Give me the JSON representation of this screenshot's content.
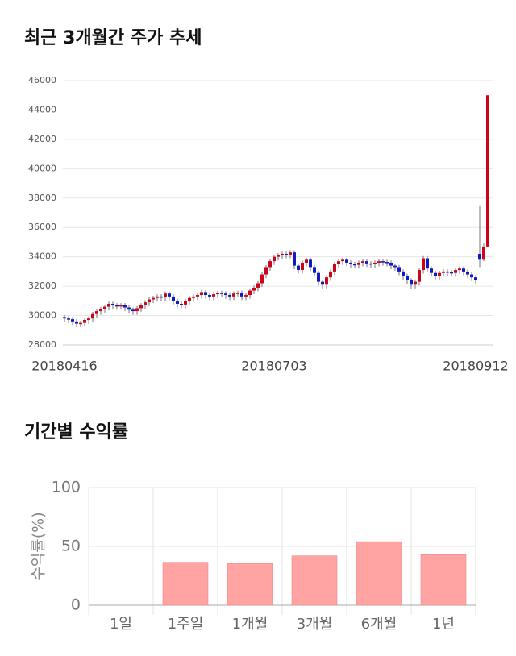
{
  "chart_data": [
    {
      "type": "candlestick",
      "title": "최근 3개월간 주가 추세",
      "categories": [
        "20180416",
        null,
        null,
        null,
        null,
        null,
        null,
        null,
        null,
        null,
        null,
        null,
        null,
        null,
        null,
        null,
        null,
        null,
        null,
        null,
        null,
        null,
        null,
        null,
        null,
        null,
        null,
        null,
        null,
        null,
        null,
        null,
        null,
        null,
        null,
        null,
        null,
        null,
        null,
        null,
        null,
        null,
        null,
        null,
        null,
        null,
        null,
        null,
        null,
        null,
        null,
        null,
        "20180703",
        null,
        null,
        null,
        null,
        null,
        null,
        null,
        null,
        null,
        null,
        null,
        null,
        null,
        null,
        null,
        null,
        null,
        null,
        null,
        null,
        null,
        null,
        null,
        null,
        null,
        null,
        null,
        null,
        null,
        null,
        null,
        null,
        null,
        null,
        null,
        null,
        null,
        null,
        null,
        null,
        null,
        null,
        null,
        null,
        null,
        null,
        null,
        null,
        null,
        "20180912",
        null,
        null,
        null
      ],
      "open": [
        29900,
        29800,
        29750,
        29600,
        29450,
        29500,
        29700,
        29800,
        30100,
        30300,
        30450,
        30600,
        30800,
        30700,
        30650,
        30700,
        30550,
        30400,
        30300,
        30500,
        30700,
        30900,
        31100,
        31200,
        31300,
        31250,
        31500,
        31300,
        31000,
        30800,
        30750,
        31000,
        31200,
        31300,
        31400,
        31600,
        31400,
        31300,
        31450,
        31550,
        31500,
        31400,
        31300,
        31500,
        31550,
        31300,
        31400,
        31700,
        31900,
        32200,
        32800,
        33300,
        33700,
        34000,
        34100,
        34200,
        34150,
        34300,
        33400,
        33100,
        33600,
        33800,
        33300,
        32900,
        32300,
        32100,
        32600,
        33000,
        33500,
        33700,
        33800,
        33600,
        33500,
        33450,
        33600,
        33700,
        33550,
        33500,
        33600,
        33700,
        33650,
        33600,
        33400,
        33300,
        33000,
        32700,
        32400,
        32100,
        32300,
        33100,
        33900,
        33200,
        32900,
        32700,
        32900,
        33000,
        32950,
        32900,
        33100,
        33200,
        33000,
        32800,
        32600,
        34200,
        33800,
        34700
      ],
      "high": [
        30050,
        29950,
        29900,
        29750,
        29650,
        29850,
        29950,
        30250,
        30450,
        30600,
        30750,
        30950,
        30950,
        30850,
        30850,
        30850,
        30700,
        30550,
        30650,
        30850,
        31050,
        31250,
        31350,
        31450,
        31450,
        31650,
        31650,
        31450,
        31150,
        30950,
        31150,
        31350,
        31450,
        31550,
        31750,
        31750,
        31550,
        31600,
        31700,
        31700,
        31650,
        31550,
        31650,
        31700,
        31700,
        31550,
        31850,
        32050,
        32350,
        32950,
        33450,
        33850,
        34150,
        34250,
        34350,
        34350,
        34450,
        34450,
        33550,
        33750,
        33950,
        33950,
        33450,
        33050,
        32450,
        32750,
        33150,
        33650,
        33850,
        33950,
        33950,
        33750,
        33650,
        33750,
        33850,
        33850,
        33700,
        33750,
        33850,
        33850,
        33800,
        33750,
        33550,
        33450,
        33150,
        32850,
        32550,
        32450,
        33250,
        34050,
        34050,
        33350,
        33050,
        33050,
        33150,
        33150,
        33100,
        33250,
        33350,
        33350,
        33150,
        32950,
        32750,
        37500,
        34900,
        45000
      ],
      "low": [
        29550,
        29500,
        29350,
        29200,
        29200,
        29250,
        29450,
        29550,
        29850,
        30050,
        30200,
        30350,
        30450,
        30400,
        30400,
        30300,
        30150,
        30050,
        30050,
        30250,
        30450,
        30650,
        30850,
        30950,
        31000,
        31000,
        31050,
        30750,
        30550,
        30500,
        30500,
        30750,
        30950,
        31050,
        31150,
        31150,
        31050,
        31050,
        31200,
        31250,
        31150,
        31050,
        31050,
        31250,
        31050,
        31050,
        31150,
        31450,
        31650,
        31950,
        32550,
        33050,
        33450,
        33750,
        33850,
        33900,
        33900,
        33150,
        32850,
        32850,
        33350,
        33050,
        32650,
        32050,
        31850,
        31850,
        32350,
        32750,
        33250,
        33450,
        33350,
        33250,
        33200,
        33200,
        33350,
        33300,
        33250,
        33250,
        33350,
        33400,
        33350,
        33150,
        33050,
        32750,
        32450,
        32150,
        31850,
        31850,
        32050,
        32850,
        32950,
        32650,
        32450,
        32450,
        32650,
        32700,
        32650,
        32650,
        32850,
        32750,
        32550,
        32350,
        32150,
        33300,
        33700,
        34700
      ],
      "close": [
        29800,
        29750,
        29600,
        29450,
        29500,
        29700,
        29800,
        30100,
        30300,
        30450,
        30600,
        30800,
        30700,
        30650,
        30700,
        30550,
        30400,
        30300,
        30500,
        30700,
        30900,
        31100,
        31200,
        31300,
        31250,
        31500,
        31300,
        31000,
        30800,
        30750,
        31000,
        31200,
        31300,
        31400,
        31600,
        31400,
        31300,
        31450,
        31550,
        31500,
        31400,
        31300,
        31500,
        31550,
        31300,
        31400,
        31700,
        31900,
        32200,
        32800,
        33300,
        33700,
        34000,
        34100,
        34200,
        34150,
        34300,
        33400,
        33100,
        33600,
        33800,
        33300,
        32900,
        32300,
        32100,
        32600,
        33000,
        33500,
        33700,
        33800,
        33600,
        33500,
        33450,
        33600,
        33700,
        33550,
        33500,
        33600,
        33700,
        33650,
        33600,
        33400,
        33300,
        33000,
        32700,
        32400,
        32100,
        32300,
        33100,
        33900,
        33200,
        32900,
        32700,
        32900,
        33000,
        32950,
        32900,
        33100,
        33200,
        33000,
        32800,
        32600,
        32400,
        33800,
        34700,
        45000
      ],
      "up_color": "#d0021b",
      "down_color": "#1018c8",
      "ylim": [
        28000,
        46000
      ],
      "yticks": [
        28000,
        30000,
        32000,
        34000,
        36000,
        38000,
        40000,
        42000,
        44000,
        46000
      ],
      "grid": true
    },
    {
      "type": "bar",
      "title": "기간별 수익률",
      "ylabel": "수익률(%)",
      "categories": [
        "1일",
        "1주일",
        "1개월",
        "3개월",
        "6개월",
        "1년"
      ],
      "values": [
        0,
        36.5,
        35.5,
        42,
        54,
        43
      ],
      "color": "#ffa3a3",
      "ylim": [
        0,
        100
      ],
      "yticks": [
        0,
        50,
        100
      ],
      "grid": true
    }
  ]
}
